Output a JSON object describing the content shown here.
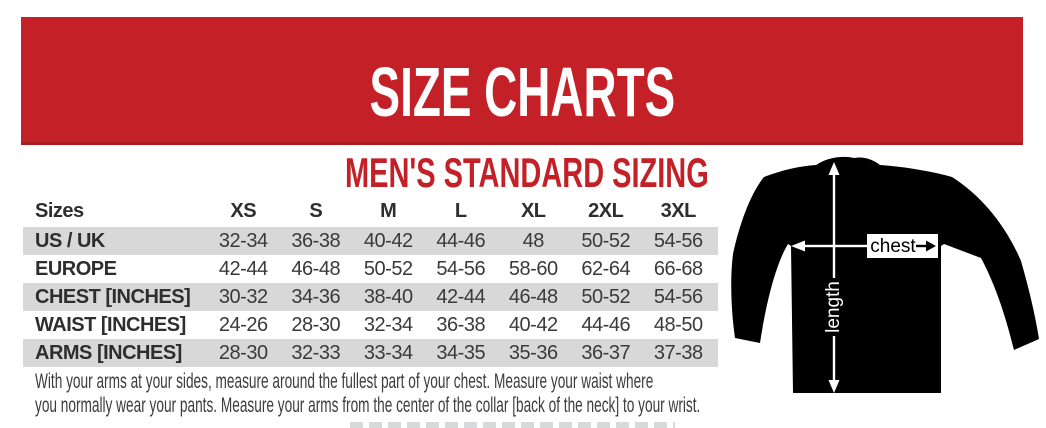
{
  "banner": {
    "title": "SIZE CHARTS",
    "bg_color": "#c32127",
    "text_color": "#ffffff"
  },
  "section": {
    "subtitle": "MEN'S STANDARD SIZING",
    "accent_color": "#c32127"
  },
  "size_table": {
    "header": {
      "label": "Sizes",
      "columns": [
        "XS",
        "S",
        "M",
        "L",
        "XL",
        "2XL",
        "3XL"
      ]
    },
    "rows": [
      {
        "label": "US / UK",
        "values": [
          "32-34",
          "36-38",
          "40-42",
          "44-46",
          "48",
          "50-52",
          "54-56"
        ]
      },
      {
        "label": "EUROPE",
        "values": [
          "42-44",
          "46-48",
          "50-52",
          "54-56",
          "58-60",
          "62-64",
          "66-68"
        ]
      },
      {
        "label": "CHEST [INCHES]",
        "values": [
          "30-32",
          "34-36",
          "38-40",
          "42-44",
          "46-48",
          "50-52",
          "54-56"
        ]
      },
      {
        "label": "WAIST [INCHES]",
        "values": [
          "24-26",
          "28-30",
          "32-34",
          "36-38",
          "40-42",
          "44-46",
          "48-50"
        ]
      },
      {
        "label": "ARMS [INCHES]",
        "values": [
          "28-30",
          "32-33",
          "33-34",
          "34-35",
          "35-36",
          "36-37",
          "37-38"
        ]
      }
    ],
    "stripe_color": "#d8d8d8"
  },
  "measure_note": {
    "line1": "With your arms at your sides, measure around the fullest part of your chest. Measure your waist where",
    "line2": "you normally wear your pants. Measure your arms from the center of the collar [back of the neck] to your wrist."
  },
  "diagram": {
    "chest_label": "chest",
    "length_label": "length",
    "shirt_color": "#000000"
  }
}
